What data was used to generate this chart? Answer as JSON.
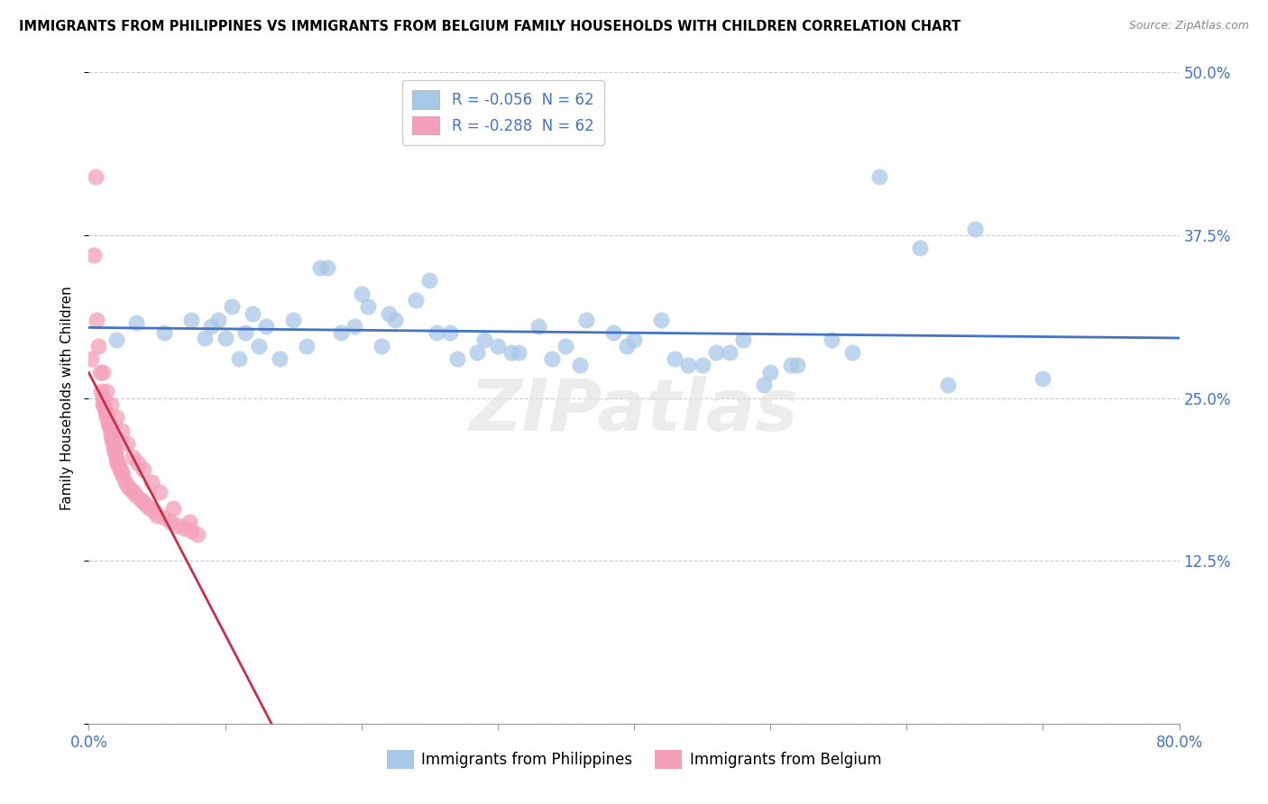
{
  "title": "IMMIGRANTS FROM PHILIPPINES VS IMMIGRANTS FROM BELGIUM FAMILY HOUSEHOLDS WITH CHILDREN CORRELATION CHART",
  "source": "Source: ZipAtlas.com",
  "ylabel": "Family Households with Children",
  "xlim": [
    0.0,
    0.8
  ],
  "ylim": [
    0.0,
    0.5
  ],
  "legend1_label": "R = -0.056  N = 62",
  "legend2_label": "R = -0.288  N = 62",
  "legend_series1": "Immigrants from Philippines",
  "legend_series2": "Immigrants from Belgium",
  "color_blue": "#a8c8e8",
  "color_pink": "#f4a0b8",
  "line_blue": "#4472c4",
  "line_pink": "#c8304a",
  "line_pink_ext": "#d8a0b0",
  "watermark": "ZIPatlas",
  "philippines_x": [
    0.02,
    0.035,
    0.055,
    0.075,
    0.085,
    0.09,
    0.095,
    0.1,
    0.105,
    0.11,
    0.115,
    0.12,
    0.125,
    0.13,
    0.14,
    0.15,
    0.16,
    0.175,
    0.185,
    0.195,
    0.205,
    0.215,
    0.225,
    0.24,
    0.255,
    0.27,
    0.285,
    0.3,
    0.315,
    0.33,
    0.35,
    0.365,
    0.385,
    0.4,
    0.42,
    0.44,
    0.46,
    0.48,
    0.5,
    0.52,
    0.545,
    0.58,
    0.61,
    0.65,
    0.7,
    0.17,
    0.2,
    0.22,
    0.25,
    0.265,
    0.29,
    0.31,
    0.34,
    0.36,
    0.395,
    0.43,
    0.45,
    0.47,
    0.495,
    0.515,
    0.56,
    0.63
  ],
  "philippines_y": [
    0.295,
    0.308,
    0.3,
    0.31,
    0.296,
    0.305,
    0.31,
    0.296,
    0.32,
    0.28,
    0.3,
    0.315,
    0.29,
    0.305,
    0.28,
    0.31,
    0.29,
    0.35,
    0.3,
    0.305,
    0.32,
    0.29,
    0.31,
    0.325,
    0.3,
    0.28,
    0.285,
    0.29,
    0.285,
    0.305,
    0.29,
    0.31,
    0.3,
    0.295,
    0.31,
    0.275,
    0.285,
    0.295,
    0.27,
    0.275,
    0.295,
    0.42,
    0.365,
    0.38,
    0.265,
    0.35,
    0.33,
    0.315,
    0.34,
    0.3,
    0.295,
    0.285,
    0.28,
    0.275,
    0.29,
    0.28,
    0.275,
    0.285,
    0.26,
    0.275,
    0.285,
    0.26
  ],
  "belgium_x": [
    0.002,
    0.004,
    0.005,
    0.006,
    0.007,
    0.008,
    0.009,
    0.01,
    0.01,
    0.011,
    0.012,
    0.012,
    0.013,
    0.013,
    0.014,
    0.015,
    0.015,
    0.016,
    0.016,
    0.017,
    0.017,
    0.018,
    0.018,
    0.019,
    0.019,
    0.02,
    0.02,
    0.021,
    0.022,
    0.023,
    0.024,
    0.025,
    0.027,
    0.029,
    0.031,
    0.033,
    0.035,
    0.038,
    0.04,
    0.042,
    0.045,
    0.048,
    0.05,
    0.055,
    0.06,
    0.065,
    0.07,
    0.075,
    0.08,
    0.01,
    0.013,
    0.016,
    0.02,
    0.024,
    0.028,
    0.032,
    0.036,
    0.04,
    0.046,
    0.052,
    0.062,
    0.074
  ],
  "belgium_y": [
    0.28,
    0.36,
    0.42,
    0.31,
    0.29,
    0.27,
    0.255,
    0.25,
    0.245,
    0.245,
    0.24,
    0.24,
    0.238,
    0.235,
    0.232,
    0.23,
    0.228,
    0.225,
    0.222,
    0.22,
    0.218,
    0.215,
    0.212,
    0.21,
    0.208,
    0.205,
    0.202,
    0.2,
    0.198,
    0.195,
    0.193,
    0.19,
    0.185,
    0.182,
    0.18,
    0.178,
    0.175,
    0.172,
    0.17,
    0.168,
    0.165,
    0.163,
    0.16,
    0.158,
    0.155,
    0.152,
    0.15,
    0.148,
    0.145,
    0.27,
    0.255,
    0.245,
    0.235,
    0.225,
    0.215,
    0.205,
    0.2,
    0.195,
    0.185,
    0.178,
    0.165,
    0.155
  ],
  "grid_color": "#cccccc",
  "title_fontsize": 10.5,
  "axis_tick_color": "#4472c4",
  "bg_color": "#ffffff"
}
